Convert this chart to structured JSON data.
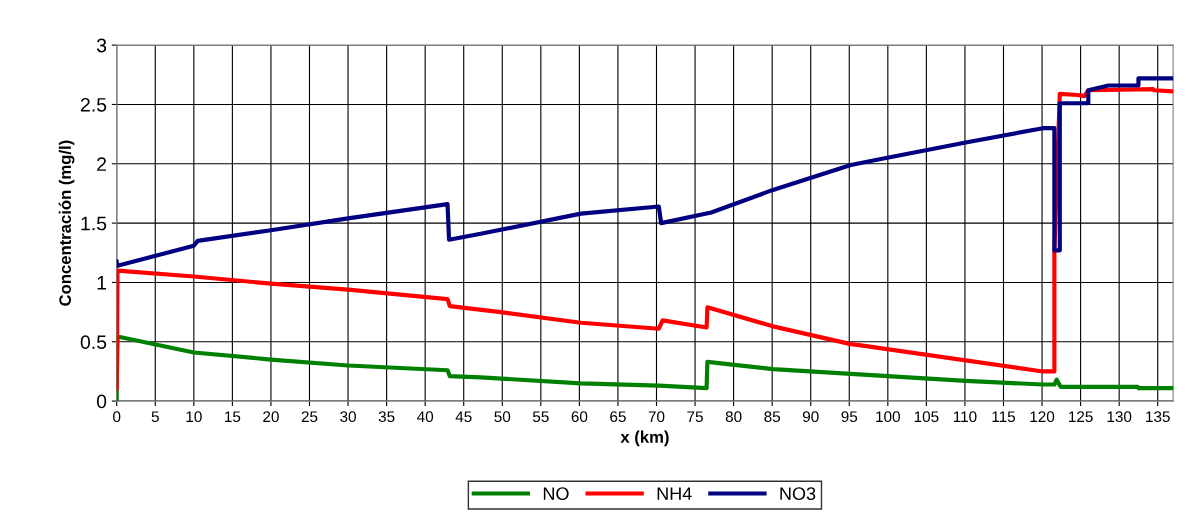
{
  "chart_data": {
    "type": "line",
    "xlabel": "x (km)",
    "ylabel": "Concentración (mg/l)",
    "xlim": [
      0,
      137
    ],
    "xticks": [
      0,
      5,
      10,
      15,
      20,
      25,
      30,
      35,
      40,
      45,
      50,
      55,
      60,
      65,
      70,
      75,
      80,
      85,
      90,
      95,
      100,
      105,
      110,
      115,
      120,
      125,
      130,
      135
    ],
    "ylim": [
      0,
      3
    ],
    "yticks": [
      0,
      0.5,
      1,
      1.5,
      2,
      2.5,
      3
    ],
    "grid": true,
    "legend": "bottom",
    "marker": "none",
    "line_style": "solid",
    "series": [
      {
        "name": "NO",
        "color": "#008000",
        "x": [
          0,
          0,
          0.1,
          0.4,
          10,
          20,
          30,
          42.9,
          43.2,
          47.2,
          60.2,
          70.3,
          76.5,
          76.6,
          85.1,
          95.2,
          110.1,
          120.1,
          121.6,
          121.9,
          122.4,
          132.4,
          132.5,
          137
        ],
        "values": [
          0,
          0.1,
          0.54,
          0.54,
          0.41,
          0.35,
          0.3,
          0.26,
          0.21,
          0.2,
          0.15,
          0.13,
          0.11,
          0.33,
          0.27,
          0.23,
          0.17,
          0.14,
          0.14,
          0.18,
          0.12,
          0.12,
          0.11,
          0.11
        ]
      },
      {
        "name": "NH4",
        "color": "#ff0000",
        "x": [
          0,
          0.1,
          10,
          20,
          30,
          42.9,
          43.2,
          49.8,
          60.2,
          70.3,
          70.8,
          76.5,
          76.6,
          85.1,
          95.2,
          96.5,
          120.1,
          121.6,
          121.6,
          122.3,
          124.6,
          125.5,
          126,
          134.4,
          134.5,
          137
        ],
        "values": [
          0.1,
          1.1,
          1.05,
          0.99,
          0.94,
          0.86,
          0.8,
          0.75,
          0.66,
          0.61,
          0.68,
          0.62,
          0.79,
          0.63,
          0.48,
          0.47,
          0.25,
          0.25,
          1.27,
          2.59,
          2.58,
          2.57,
          2.62,
          2.63,
          2.62,
          2.61
        ]
      },
      {
        "name": "NO3",
        "color": "#000080",
        "x": [
          0,
          0,
          0.1,
          10,
          10.5,
          20,
          30,
          42.9,
          43.1,
          47.2,
          60.2,
          70.3,
          70.6,
          77.1,
          85.1,
          95.2,
          99.1,
          110.1,
          120.1,
          121.6,
          121.6,
          122.3,
          122.3,
          126,
          126,
          128.6,
          132.5,
          132.5,
          137
        ],
        "values": [
          1.18,
          1.14,
          1.14,
          1.31,
          1.35,
          1.44,
          1.54,
          1.66,
          1.36,
          1.41,
          1.58,
          1.64,
          1.5,
          1.59,
          1.78,
          1.99,
          2.04,
          2.18,
          2.3,
          2.3,
          1.27,
          1.27,
          2.51,
          2.51,
          2.62,
          2.66,
          2.66,
          2.72,
          2.72
        ]
      }
    ]
  }
}
